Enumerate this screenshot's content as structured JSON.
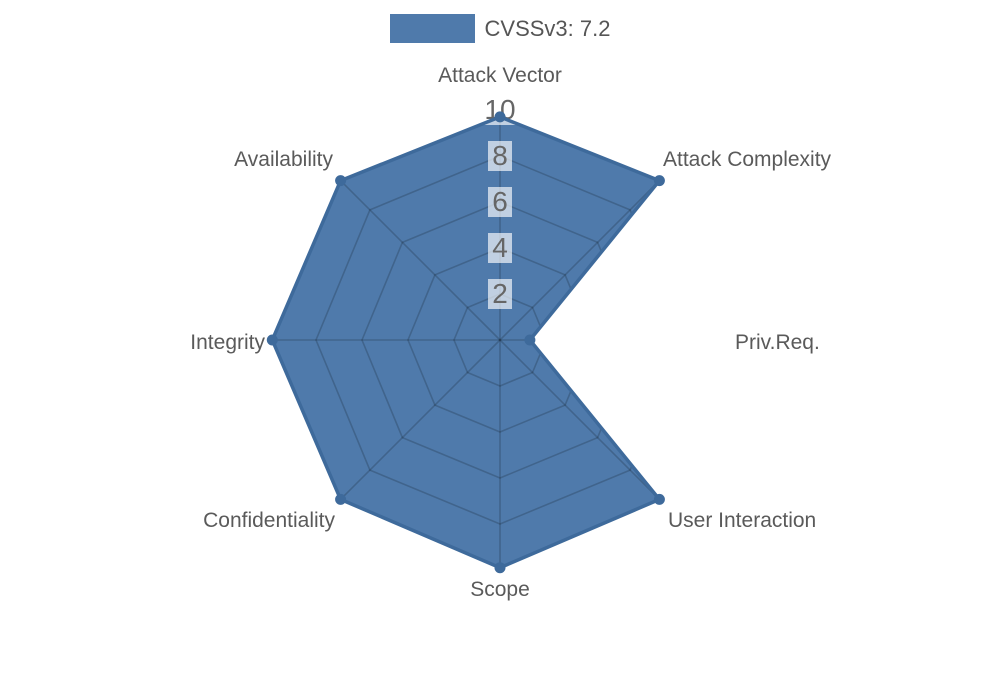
{
  "chart_data": {
    "type": "radar",
    "legend": "CVSSv3: 7.2",
    "legend_position": "top",
    "categories": [
      "Attack Vector",
      "Attack Complexity",
      "Priv.Req.",
      "User Interaction",
      "Scope",
      "Confidentiality",
      "Integrity",
      "Availability"
    ],
    "series": [
      {
        "name": "CVSSv3: 7.2",
        "values": [
          9.7,
          9.8,
          1.3,
          9.8,
          9.9,
          9.8,
          9.9,
          9.8
        ]
      }
    ],
    "scale": {
      "min": 0,
      "max": 10,
      "ticks": [
        2,
        4,
        6,
        8,
        10
      ]
    },
    "grid": true,
    "grid_shape": "polygon",
    "colors": {
      "fill": "#4f7aab",
      "line": "#3e6a9b",
      "grid_line": "rgba(0,0,0,0.18)",
      "tick_backdrop": "rgba(255,255,255,0.65)",
      "tick_text": "#666666",
      "label_text": "#5a5a5a",
      "legend_text": "#555555"
    }
  }
}
